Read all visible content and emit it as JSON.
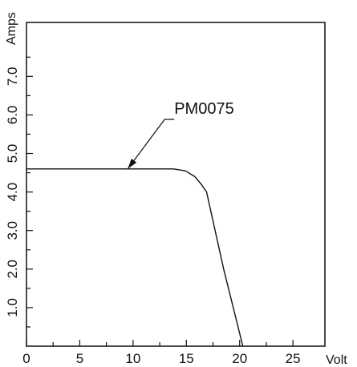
{
  "chart_data": {
    "type": "line",
    "title": "",
    "xlabel": "Volt",
    "ylabel": "Amps",
    "xlim": [
      0,
      28
    ],
    "ylim": [
      0,
      8.4
    ],
    "x_ticks": [
      0,
      5,
      10,
      15,
      20,
      25
    ],
    "x_minor_ticks": [
      2.5,
      7.5,
      12.5,
      17.5,
      22.5
    ],
    "y_ticks": [
      1.0,
      2.0,
      3.0,
      4.0,
      5.0,
      6.0,
      7.0
    ],
    "y_tick_labels": [
      "1.0",
      "2.0",
      "3.0",
      "4.0",
      "5.0",
      "6.0",
      "7.0"
    ],
    "y_minor_ticks": [
      0.5,
      1.5,
      2.5,
      3.5,
      4.5,
      5.5,
      6.5,
      7.5
    ],
    "grid": false,
    "series": [
      {
        "name": "PM0075",
        "x": [
          0,
          13.8,
          14.9,
          15.8,
          16.4,
          16.9,
          18.5,
          20.3
        ],
        "y": [
          4.6,
          4.6,
          4.55,
          4.4,
          4.2,
          4.0,
          2.0,
          0
        ]
      }
    ],
    "annotations": [
      {
        "text": "PM0075",
        "x": 9.5,
        "y": 4.6
      }
    ]
  }
}
